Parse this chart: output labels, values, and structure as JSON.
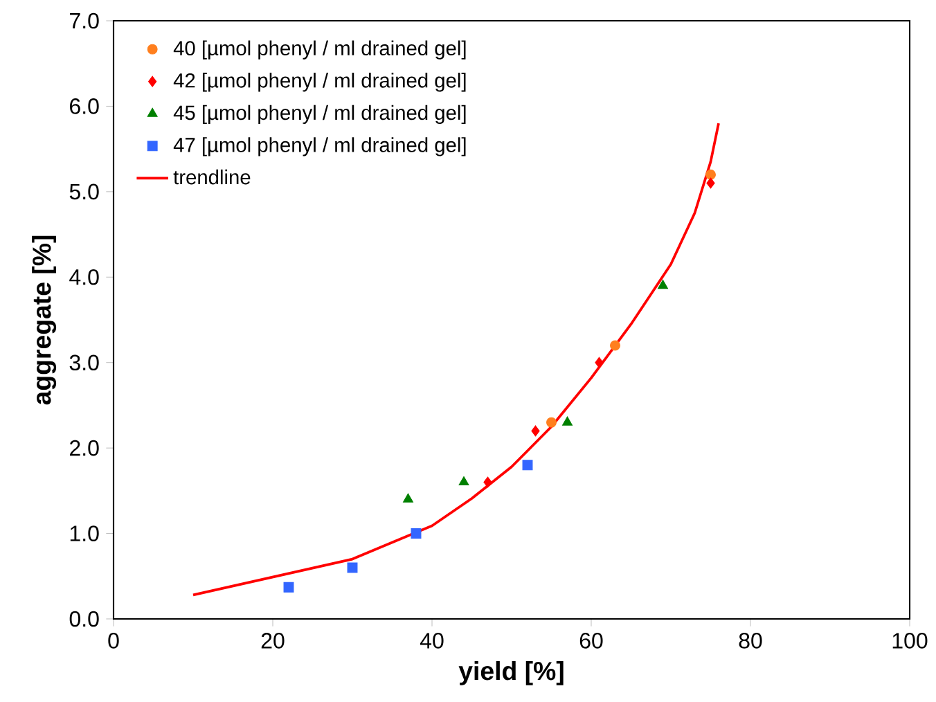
{
  "chart_data": {
    "type": "scatter",
    "xlabel": "yield [%]",
    "ylabel": "aggregate [%]",
    "xlim": [
      0,
      100
    ],
    "ylim": [
      0,
      7
    ],
    "xticks": [
      0,
      20,
      40,
      60,
      80,
      100
    ],
    "yticks": [
      {
        "value": 0,
        "label": "0.0"
      },
      {
        "value": 1,
        "label": "1.0"
      },
      {
        "value": 2,
        "label": "2.0"
      },
      {
        "value": 3,
        "label": "3.0"
      },
      {
        "value": 4,
        "label": "4.0"
      },
      {
        "value": 5,
        "label": "5.0"
      },
      {
        "value": 6,
        "label": "6.0"
      },
      {
        "value": 7,
        "label": "7.0"
      }
    ],
    "legend": "top left",
    "grid": false,
    "series": [
      {
        "name": "40 [µmol phenyl / ml drained gel]",
        "color": "#ff7f1e",
        "marker": "circle",
        "x": [
          55,
          63,
          75
        ],
        "values": [
          2.3,
          3.2,
          5.2
        ]
      },
      {
        "name": "42 [µmol phenyl / ml drained gel]",
        "color": "#ff0000",
        "marker": "diamond",
        "x": [
          47,
          53,
          61,
          75
        ],
        "values": [
          1.6,
          2.2,
          3.0,
          5.1
        ]
      },
      {
        "name": "45 [µmol phenyl / ml drained gel]",
        "color": "#008000",
        "marker": "triangle",
        "x": [
          37,
          44,
          57,
          69
        ],
        "values": [
          1.4,
          1.6,
          2.3,
          3.9
        ]
      },
      {
        "name": "47 [µmol phenyl / ml drained gel]",
        "color": "#3366ff",
        "marker": "square",
        "x": [
          22,
          30,
          38,
          52
        ],
        "values": [
          0.37,
          0.6,
          1.0,
          1.8
        ]
      },
      {
        "name": "trendline",
        "type": "line",
        "color": "#ff0000",
        "marker": "none",
        "line_style": "solid",
        "x": [
          10,
          20,
          30,
          40,
          45,
          50,
          55,
          60,
          65,
          70,
          73,
          75,
          76
        ],
        "values": [
          0.28,
          0.49,
          0.7,
          1.09,
          1.41,
          1.78,
          2.25,
          2.82,
          3.45,
          4.15,
          4.75,
          5.35,
          5.8
        ]
      }
    ]
  }
}
